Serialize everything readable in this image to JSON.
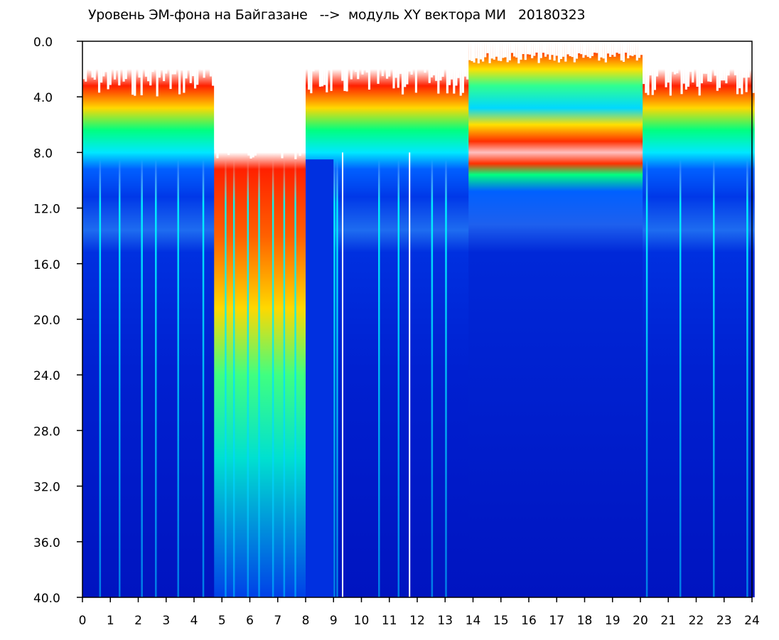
{
  "chart_data": {
    "type": "heatmap",
    "title": "Уровень ЭМ-фона на Байгазане   -->  модуль XY вектора МИ   20180323",
    "xlabel": "",
    "ylabel": "",
    "xlim": [
      0,
      24
    ],
    "ylim": [
      0,
      40
    ],
    "y_inverted": true,
    "x_ticks": [
      "0",
      "1",
      "2",
      "3",
      "4",
      "5",
      "6",
      "7",
      "8",
      "9",
      "10",
      "11",
      "12",
      "13",
      "14",
      "15",
      "16",
      "17",
      "18",
      "19",
      "20",
      "21",
      "22",
      "23",
      "24"
    ],
    "y_ticks": [
      "0.0",
      "4.0",
      "8.0",
      "12.0",
      "16.0",
      "20.0",
      "24.0",
      "28.0",
      "32.0",
      "36.0",
      "40.0"
    ],
    "grid": false,
    "colormap": [
      "#ffffff",
      "#ff0000",
      "#ffff00",
      "#00ff80",
      "#00ffff",
      "#0040ff",
      "#0010c8"
    ],
    "background_color": "#0018cc",
    "bright_band_level_top": 8.0,
    "secondary_band_level": 14.0,
    "disturbed_interval_hours": [
      4.7,
      8.0
    ],
    "white_gap_hours": [
      9.3,
      11.7
    ]
  }
}
